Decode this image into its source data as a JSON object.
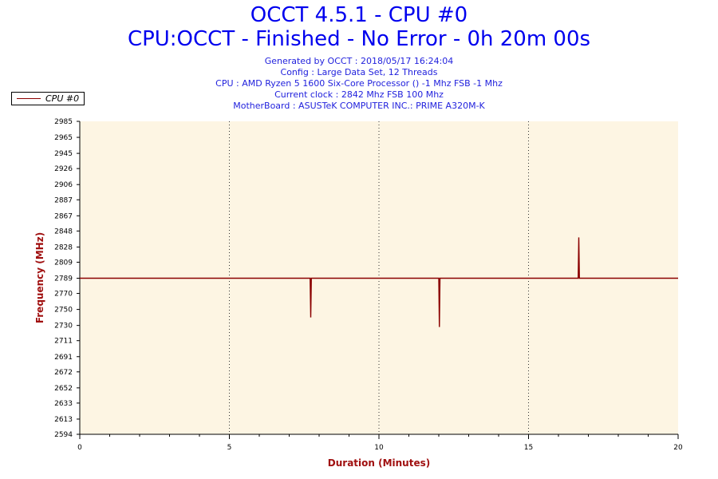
{
  "header": {
    "title": "OCCT 4.5.1 - CPU #0",
    "subtitle": "CPU:OCCT - Finished - No Error - 0h 20m 00s",
    "info_lines": [
      "Generated by OCCT : 2018/05/17 16:24:04",
      "Config : Large Data Set, 12 Threads",
      "CPU : AMD Ryzen 5 1600 Six-Core Processor () -1 Mhz FSB -1 Mhz",
      "Current clock : 2842 Mhz FSB 100 Mhz",
      "MotherBoard : ASUSTeK COMPUTER INC.: PRIME A320M-K"
    ]
  },
  "legend": {
    "label": "CPU #0",
    "position": "top-left"
  },
  "colors": {
    "line": "#8b0000",
    "plot_bg": "#fdf5e3",
    "title": "#0000ee",
    "axis_title": "#a01010"
  },
  "chart_data": {
    "type": "line",
    "xlabel": "Duration (Minutes)",
    "ylabel": "Frequency (MHz)",
    "xlim": [
      0,
      20
    ],
    "ylim": [
      2594,
      2985
    ],
    "x_ticks": [
      0,
      5,
      10,
      15,
      20
    ],
    "y_ticks": [
      2594,
      2613,
      2633,
      2652,
      2672,
      2691,
      2711,
      2730,
      2750,
      2770,
      2789,
      2809,
      2828,
      2848,
      2867,
      2887,
      2906,
      2926,
      2945,
      2965,
      2985
    ],
    "grid": "vertical dotted at 5, 10, 15",
    "series": [
      {
        "name": "CPU #0",
        "x": [
          0,
          7.7,
          7.72,
          7.74,
          7.76,
          12.0,
          12.02,
          12.04,
          12.06,
          16.66,
          16.68,
          16.7,
          16.72,
          20
        ],
        "y": [
          2789,
          2789,
          2740,
          2789,
          2789,
          2789,
          2728,
          2789,
          2789,
          2789,
          2840,
          2789,
          2789,
          2789
        ]
      }
    ]
  }
}
